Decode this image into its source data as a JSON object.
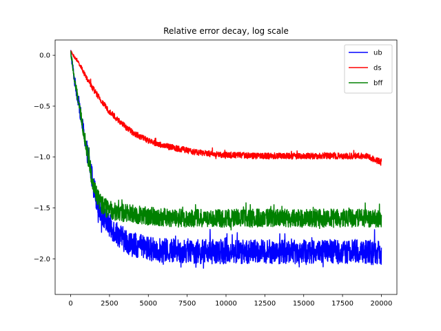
{
  "chart_data": {
    "type": "line",
    "title": "Relative error decay, log scale",
    "xlabel": "",
    "ylabel": "",
    "xlim": [
      -1000,
      21000
    ],
    "ylim": [
      -2.35,
      0.15
    ],
    "xticks": [
      0,
      2500,
      5000,
      7500,
      10000,
      12500,
      15000,
      17500,
      20000
    ],
    "xtick_labels": [
      "0",
      "2500",
      "5000",
      "7500",
      "10000",
      "12500",
      "15000",
      "17500",
      "20000"
    ],
    "yticks": [
      0.0,
      -0.5,
      -1.0,
      -1.5,
      -2.0
    ],
    "ytick_labels": [
      "0.0",
      "−0.5",
      "−1.0",
      "−1.5",
      "−2.0"
    ],
    "grid": false,
    "legend_position": "top-right",
    "series": [
      {
        "name": "ub",
        "color": "#0000ff",
        "x": [
          0,
          250,
          500,
          750,
          1000,
          1250,
          1500,
          1750,
          2000,
          2500,
          3000,
          3500,
          4000,
          5000,
          6000,
          7000,
          8000,
          9000,
          10000,
          11000,
          12000,
          13000,
          14000,
          15000,
          16000,
          17000,
          18000,
          19000,
          20000
        ],
        "y": [
          0.04,
          -0.25,
          -0.45,
          -0.68,
          -0.9,
          -1.1,
          -1.3,
          -1.45,
          -1.55,
          -1.68,
          -1.75,
          -1.82,
          -1.86,
          -1.9,
          -1.92,
          -1.92,
          -1.93,
          -1.93,
          -1.93,
          -1.93,
          -1.93,
          -1.93,
          -1.93,
          -1.93,
          -1.93,
          -1.93,
          -1.93,
          -1.93,
          -1.95
        ],
        "noise": 0.12
      },
      {
        "name": "ds",
        "color": "#ff0000",
        "x": [
          0,
          250,
          500,
          750,
          1000,
          1500,
          2000,
          2500,
          3000,
          3500,
          4000,
          5000,
          6000,
          7000,
          8000,
          9000,
          10000,
          11000,
          12000,
          13000,
          14000,
          15000,
          16000,
          17000,
          18000,
          19000,
          20000
        ],
        "y": [
          0.04,
          -0.02,
          -0.07,
          -0.14,
          -0.22,
          -0.34,
          -0.46,
          -0.55,
          -0.63,
          -0.7,
          -0.76,
          -0.84,
          -0.89,
          -0.92,
          -0.95,
          -0.97,
          -0.98,
          -0.98,
          -0.99,
          -0.99,
          -0.99,
          -0.99,
          -0.99,
          -0.99,
          -0.99,
          -0.99,
          -1.05
        ],
        "noise": 0.03
      },
      {
        "name": "bff",
        "color": "#008000",
        "x": [
          0,
          250,
          500,
          750,
          1000,
          1250,
          1500,
          1750,
          2000,
          2500,
          3000,
          4000,
          5000,
          6000,
          7000,
          8000,
          9000,
          10000,
          11000,
          12000,
          13000,
          14000,
          15000,
          16000,
          17000,
          18000,
          19000,
          20000
        ],
        "y": [
          0.04,
          -0.25,
          -0.45,
          -0.68,
          -0.9,
          -1.12,
          -1.3,
          -1.4,
          -1.47,
          -1.52,
          -1.54,
          -1.56,
          -1.58,
          -1.59,
          -1.6,
          -1.6,
          -1.6,
          -1.6,
          -1.6,
          -1.6,
          -1.6,
          -1.6,
          -1.6,
          -1.6,
          -1.6,
          -1.6,
          -1.6,
          -1.6
        ],
        "noise": 0.09
      }
    ]
  }
}
